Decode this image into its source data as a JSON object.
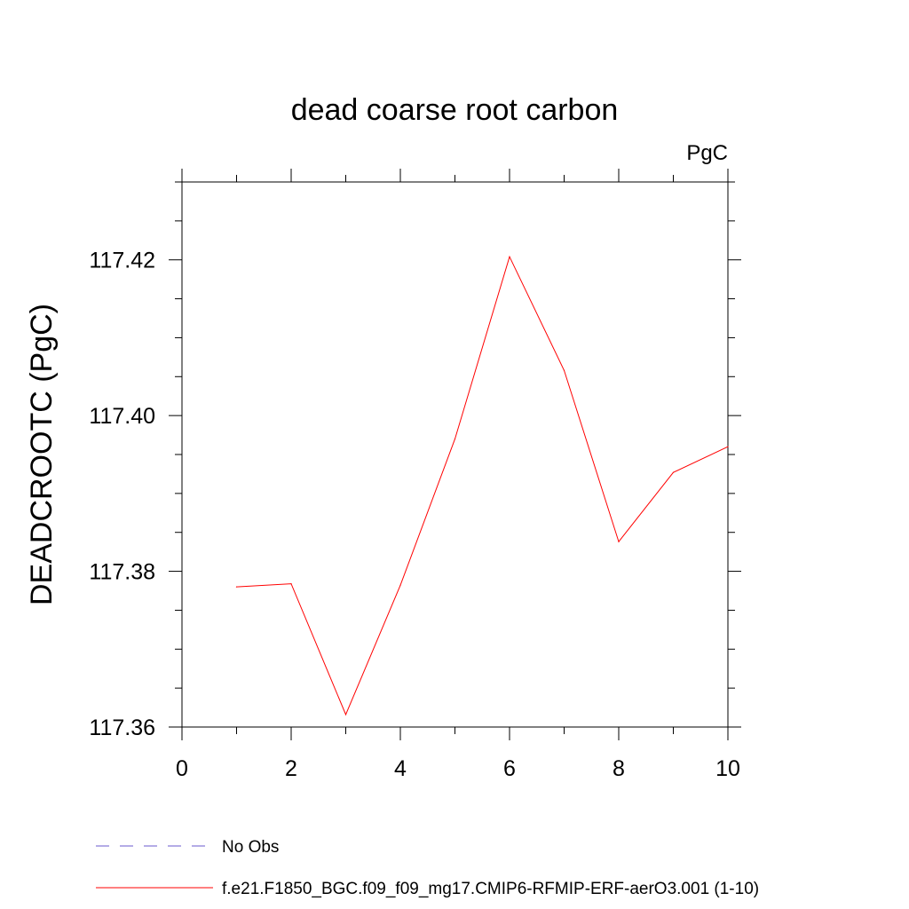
{
  "chart_data": {
    "type": "line",
    "title": "dead coarse root carbon",
    "units_label": "PgC",
    "ylabel": "DEADCROOTC  (PgC)",
    "xlabel": "",
    "xlim": [
      0,
      10
    ],
    "ylim": [
      117.36,
      117.43
    ],
    "x_ticks": [
      "0",
      "2",
      "4",
      "6",
      "8",
      "10"
    ],
    "y_ticks": [
      "117.36",
      "117.38",
      "117.40",
      "117.42"
    ],
    "grid": false,
    "legend_position": "bottom",
    "series": [
      {
        "name": "f.e21.F1850_BGC.f09_f09_mg17.CMIP6-RFMIP-ERF-aerO3.001 (1-10)",
        "color": "#ff0000",
        "style": "solid",
        "x": [
          1,
          2,
          3,
          4,
          5,
          6,
          7,
          8,
          9,
          10
        ],
        "y": [
          117.378,
          117.3784,
          117.3616,
          117.3782,
          117.397,
          117.4204,
          117.4058,
          117.3838,
          117.3927,
          117.396
        ]
      },
      {
        "name": "No Obs",
        "color": "#6a5acd",
        "style": "dashed",
        "x": [],
        "y": []
      }
    ]
  }
}
